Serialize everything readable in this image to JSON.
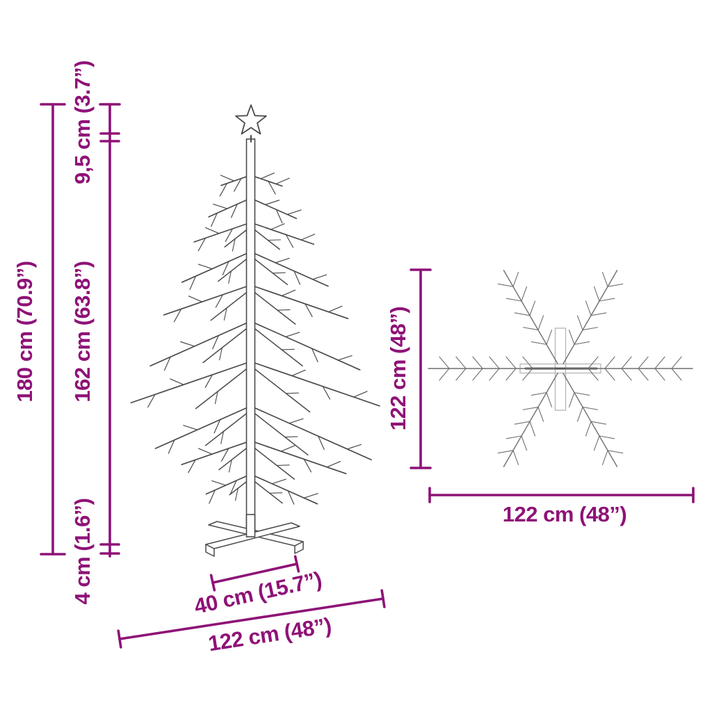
{
  "colors": {
    "accent": "#8e1277",
    "tree_line": "#4a4a4a",
    "top_view_line": "#6f6f6f",
    "faint_line": "#b5b5b5",
    "background": "#ffffff"
  },
  "front_view": {
    "total_height_label": "180 cm (70.9”)",
    "star_height_label": "9,5 cm (3.7”)",
    "tree_height_label": "162 cm (63.8”)",
    "base_height_label": "4 cm (1.6”)",
    "base_width_label": "40 cm (15.7”)",
    "total_width_label": "122 cm (48”)"
  },
  "top_view": {
    "height_label": "122 cm (48”)",
    "width_label": "122 cm (48”)"
  }
}
